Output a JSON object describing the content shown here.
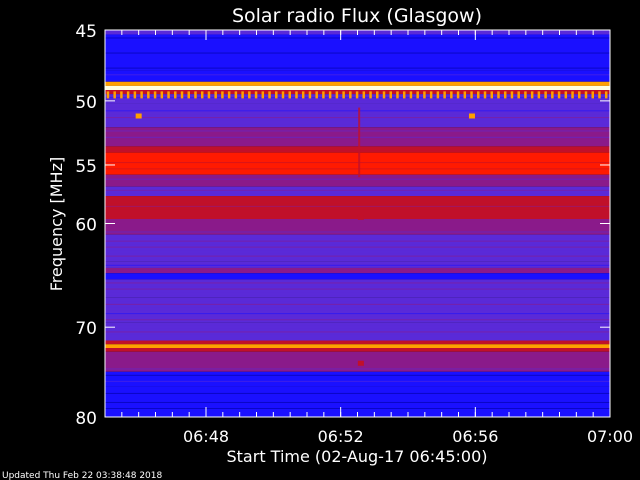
{
  "chart_data": {
    "type": "heatmap",
    "title": "Solar radio Flux (Glasgow)",
    "xlabel": "Start Time (02-Aug-17 06:45:00)",
    "ylabel": "Frequency [MHz]",
    "footer": "Updated Thu Feb 22 03:38:48 2018",
    "x_range_minutes": [
      0,
      15
    ],
    "x_start": "06:45",
    "x_ticks": [
      {
        "minute": 3,
        "label": "06:48"
      },
      {
        "minute": 7,
        "label": "06:52"
      },
      {
        "minute": 11,
        "label": "06:56"
      },
      {
        "minute": 15,
        "label": "07:00"
      }
    ],
    "y_range_mhz": [
      45,
      80
    ],
    "y_log_scale": true,
    "y_ticks": [
      {
        "value": 45,
        "label": "45"
      },
      {
        "value": 50,
        "label": "50"
      },
      {
        "value": 55,
        "label": "55"
      },
      {
        "value": 60,
        "label": "60"
      },
      {
        "value": 70,
        "label": "70"
      },
      {
        "value": 80,
        "label": "80"
      }
    ],
    "colormap": [
      "#0000a0",
      "#1a10ff",
      "#5a2ad8",
      "#8a1a8a",
      "#c0102a",
      "#ff1a00",
      "#ffa000",
      "#ffffe0"
    ],
    "intensity_bands": [
      {
        "f_start": 45.0,
        "f_end": 45.3,
        "level": 0.35
      },
      {
        "f_start": 45.3,
        "f_end": 47.8,
        "level": 0.12
      },
      {
        "f_start": 47.8,
        "f_end": 48.6,
        "level": 0.2
      },
      {
        "f_start": 48.6,
        "f_end": 48.9,
        "level": 0.9
      },
      {
        "f_start": 48.9,
        "f_end": 49.2,
        "level": 1.0
      },
      {
        "f_start": 49.2,
        "f_end": 49.5,
        "level": 0.5
      },
      {
        "f_start": 49.5,
        "f_end": 50.2,
        "level": 0.22
      },
      {
        "f_start": 50.2,
        "f_end": 52.0,
        "level": 0.28
      },
      {
        "f_start": 52.0,
        "f_end": 53.5,
        "level": 0.38
      },
      {
        "f_start": 53.5,
        "f_end": 54.0,
        "level": 0.55
      },
      {
        "f_start": 54.0,
        "f_end": 55.8,
        "level": 0.66
      },
      {
        "f_start": 55.8,
        "f_end": 56.8,
        "level": 0.42
      },
      {
        "f_start": 56.8,
        "f_end": 57.6,
        "level": 0.32
      },
      {
        "f_start": 57.6,
        "f_end": 59.6,
        "level": 0.55
      },
      {
        "f_start": 59.6,
        "f_end": 61.0,
        "level": 0.4
      },
      {
        "f_start": 61.0,
        "f_end": 63.5,
        "level": 0.33
      },
      {
        "f_start": 63.5,
        "f_end": 64.1,
        "level": 0.26
      },
      {
        "f_start": 64.1,
        "f_end": 64.6,
        "level": 0.45
      },
      {
        "f_start": 64.6,
        "f_end": 65.2,
        "level": 0.2
      },
      {
        "f_start": 65.2,
        "f_end": 67.0,
        "level": 0.33
      },
      {
        "f_start": 67.0,
        "f_end": 69.5,
        "level": 0.28
      },
      {
        "f_start": 69.5,
        "f_end": 71.4,
        "level": 0.3
      },
      {
        "f_start": 71.4,
        "f_end": 71.8,
        "level": 0.55
      },
      {
        "f_start": 71.8,
        "f_end": 72.2,
        "level": 0.9
      },
      {
        "f_start": 72.2,
        "f_end": 72.6,
        "level": 0.6
      },
      {
        "f_start": 72.6,
        "f_end": 74.8,
        "level": 0.4
      },
      {
        "f_start": 74.8,
        "f_end": 76.5,
        "level": 0.15
      },
      {
        "f_start": 76.5,
        "f_end": 80.0,
        "level": 0.1
      }
    ],
    "burst_frequency_mhz": 49.3,
    "burst_interval_minutes": 0.2,
    "spot_markers": [
      {
        "minute": 1.0,
        "mhz": 51.1,
        "level": 0.85
      },
      {
        "minute": 10.9,
        "mhz": 51.1,
        "level": 0.85
      },
      {
        "minute": 7.6,
        "mhz": 59.4,
        "level": 0.6
      },
      {
        "minute": 7.6,
        "mhz": 73.8,
        "level": 0.55
      }
    ],
    "vertical_streak": {
      "minute": 7.55,
      "mhz_from": 50.5,
      "mhz_to": 56.0,
      "level": 0.5
    }
  }
}
